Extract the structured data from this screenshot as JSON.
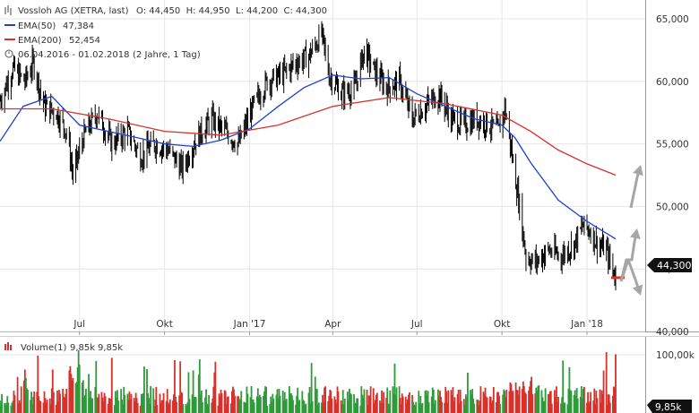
{
  "header": {
    "title": "Vossloh AG (XETRA, last)",
    "ohlc": "O: 44,450  H: 44,950  L: 44,200  C: 44,300",
    "ema50_label": "EMA(50)",
    "ema50_value": "47,384",
    "ema200_label": "EMA(200)",
    "ema200_value": "52,454",
    "period": "06.04.2016 - 01.02.2018",
    "interval": "(2 Jahre, 1 Tag)",
    "volume_label": "Volume(1)",
    "volume_value1": "9,85k",
    "volume_value2": "9,85k"
  },
  "colors": {
    "price": "#000000",
    "ema50": "#1f3fd1",
    "ema200": "#d8302a",
    "volume_up": "#2e9a3a",
    "volume_down": "#d8302a",
    "arrow": "#a6a6a6",
    "grid": "#e6e6e6"
  },
  "chart_data": [
    {
      "type": "line",
      "title": "Vossloh AG (XETRA, last)",
      "subtitle": "06.04.2016 - 01.02.2018 (2 Jahre, 1 Tag)",
      "y_ticks": [
        "40,000",
        "45,000",
        "50,000",
        "55,000",
        "60,000",
        "65,000"
      ],
      "ylim": [
        40,
        66.5
      ],
      "x_ticks": [
        "Jul",
        "Okt",
        "Jan '17",
        "Apr",
        "Jul",
        "Okt",
        "Jan '18"
      ],
      "x_tick_dates": [
        "2016-07-01",
        "2016-10-01",
        "2017-01-01",
        "2017-04-01",
        "2017-07-01",
        "2017-10-01",
        "2018-01-01"
      ],
      "xlim": [
        "2016-04-06",
        "2018-03-05"
      ],
      "last_price_label": "44,300",
      "series": [
        {
          "name": "Vossloh AG (XETRA, last)",
          "points": [
            [
              "2016-04-06",
              58.5
            ],
            [
              "2016-04-20",
              61.0
            ],
            [
              "2016-05-03",
              60.0
            ],
            [
              "2016-05-12",
              61.5
            ],
            [
              "2016-05-24",
              58.0
            ],
            [
              "2016-06-06",
              57.5
            ],
            [
              "2016-06-17",
              56.0
            ],
            [
              "2016-06-24",
              52.5
            ],
            [
              "2016-07-05",
              55.5
            ],
            [
              "2016-07-20",
              57.5
            ],
            [
              "2016-08-05",
              55.0
            ],
            [
              "2016-08-22",
              56.0
            ],
            [
              "2016-09-05",
              54.0
            ],
            [
              "2016-09-20",
              55.0
            ],
            [
              "2016-10-05",
              54.5
            ],
            [
              "2016-10-20",
              53.0
            ],
            [
              "2016-11-05",
              55.5
            ],
            [
              "2016-11-21",
              57.0
            ],
            [
              "2016-12-05",
              56.0
            ],
            [
              "2016-12-20",
              55.0
            ],
            [
              "2017-01-05",
              58.0
            ],
            [
              "2017-01-20",
              60.0
            ],
            [
              "2017-02-05",
              60.5
            ],
            [
              "2017-02-20",
              61.5
            ],
            [
              "2017-03-06",
              62.0
            ],
            [
              "2017-03-20",
              63.8
            ],
            [
              "2017-03-28",
              60.5
            ],
            [
              "2017-04-10",
              59.0
            ],
            [
              "2017-04-25",
              59.5
            ],
            [
              "2017-05-05",
              62.5
            ],
            [
              "2017-05-15",
              61.0
            ],
            [
              "2017-05-29",
              59.5
            ],
            [
              "2017-06-12",
              60.0
            ],
            [
              "2017-06-26",
              57.0
            ],
            [
              "2017-07-10",
              58.0
            ],
            [
              "2017-07-25",
              59.0
            ],
            [
              "2017-08-07",
              57.0
            ],
            [
              "2017-08-21",
              56.5
            ],
            [
              "2017-09-04",
              57.0
            ],
            [
              "2017-09-18",
              56.5
            ],
            [
              "2017-09-28",
              56.0
            ],
            [
              "2017-10-04",
              58.0
            ],
            [
              "2017-10-12",
              54.0
            ],
            [
              "2017-10-20",
              50.0
            ],
            [
              "2017-10-27",
              46.0
            ],
            [
              "2017-11-06",
              45.5
            ],
            [
              "2017-11-20",
              46.5
            ],
            [
              "2017-12-04",
              46.0
            ],
            [
              "2017-12-18",
              47.0
            ],
            [
              "2017-12-28",
              48.5
            ],
            [
              "2018-01-05",
              48.0
            ],
            [
              "2018-01-12",
              47.0
            ],
            [
              "2018-01-22",
              46.5
            ],
            [
              "2018-01-26",
              45.5
            ],
            [
              "2018-02-01",
              44.3
            ]
          ]
        },
        {
          "name": "EMA(50)",
          "points": [
            [
              "2016-04-06",
              55.2
            ],
            [
              "2016-05-01",
              58.0
            ],
            [
              "2016-06-01",
              58.8
            ],
            [
              "2016-07-01",
              56.5
            ],
            [
              "2016-08-01",
              56.0
            ],
            [
              "2016-09-01",
              55.5
            ],
            [
              "2016-10-01",
              55.0
            ],
            [
              "2016-11-01",
              54.8
            ],
            [
              "2016-12-01",
              55.3
            ],
            [
              "2017-01-01",
              56.2
            ],
            [
              "2017-02-01",
              58.0
            ],
            [
              "2017-03-01",
              59.5
            ],
            [
              "2017-04-01",
              60.5
            ],
            [
              "2017-05-01",
              60.2
            ],
            [
              "2017-06-01",
              60.3
            ],
            [
              "2017-07-01",
              59.0
            ],
            [
              "2017-08-01",
              58.0
            ],
            [
              "2017-09-01",
              57.0
            ],
            [
              "2017-10-01",
              56.5
            ],
            [
              "2017-10-15",
              55.5
            ],
            [
              "2017-11-01",
              53.5
            ],
            [
              "2017-12-01",
              50.5
            ],
            [
              "2018-01-01",
              48.8
            ],
            [
              "2018-02-01",
              47.4
            ]
          ]
        },
        {
          "name": "EMA(200)",
          "points": [
            [
              "2016-04-06",
              57.8
            ],
            [
              "2016-06-01",
              57.8
            ],
            [
              "2016-08-01",
              57.0
            ],
            [
              "2016-10-01",
              56.0
            ],
            [
              "2016-12-01",
              55.7
            ],
            [
              "2017-02-01",
              56.5
            ],
            [
              "2017-04-01",
              58.0
            ],
            [
              "2017-06-01",
              58.7
            ],
            [
              "2017-08-01",
              58.2
            ],
            [
              "2017-10-01",
              57.3
            ],
            [
              "2017-11-01",
              56.0
            ],
            [
              "2017-12-01",
              54.5
            ],
            [
              "2018-01-01",
              53.4
            ],
            [
              "2018-02-01",
              52.5
            ]
          ]
        }
      ]
    },
    {
      "type": "bar",
      "title": "Volume(1)",
      "y_ticks": [
        "100,00k"
      ],
      "last_value_label": "9,85k",
      "note": "daily volume bars, green = up day, red = down day"
    }
  ]
}
